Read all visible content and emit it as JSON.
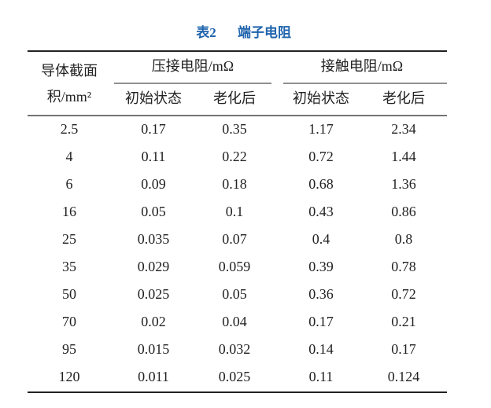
{
  "title": {
    "label": "表2",
    "text": "端子电阻"
  },
  "table": {
    "header": {
      "first_column": [
        "导体截面",
        "积/mm²"
      ],
      "groups": [
        "压接电阻/mΩ",
        "接触电阻/mΩ"
      ],
      "subheaders": [
        "初始状态",
        "老化后",
        "初始状态",
        "老化后"
      ]
    },
    "rows": [
      [
        "2.5",
        "0.17",
        "0.35",
        "1.17",
        "2.34"
      ],
      [
        "4",
        "0.11",
        "0.22",
        "0.72",
        "1.44"
      ],
      [
        "6",
        "0.09",
        "0.18",
        "0.68",
        "1.36"
      ],
      [
        "16",
        "0.05",
        "0.1",
        "0.43",
        "0.86"
      ],
      [
        "25",
        "0.035",
        "0.07",
        "0.4",
        "0.8"
      ],
      [
        "35",
        "0.029",
        "0.059",
        "0.39",
        "0.78"
      ],
      [
        "50",
        "0.025",
        "0.05",
        "0.36",
        "0.72"
      ],
      [
        "70",
        "0.02",
        "0.04",
        "0.17",
        "0.21"
      ],
      [
        "95",
        "0.015",
        "0.032",
        "0.14",
        "0.17"
      ],
      [
        "120",
        "0.011",
        "0.025",
        "0.11",
        "0.124"
      ]
    ]
  }
}
